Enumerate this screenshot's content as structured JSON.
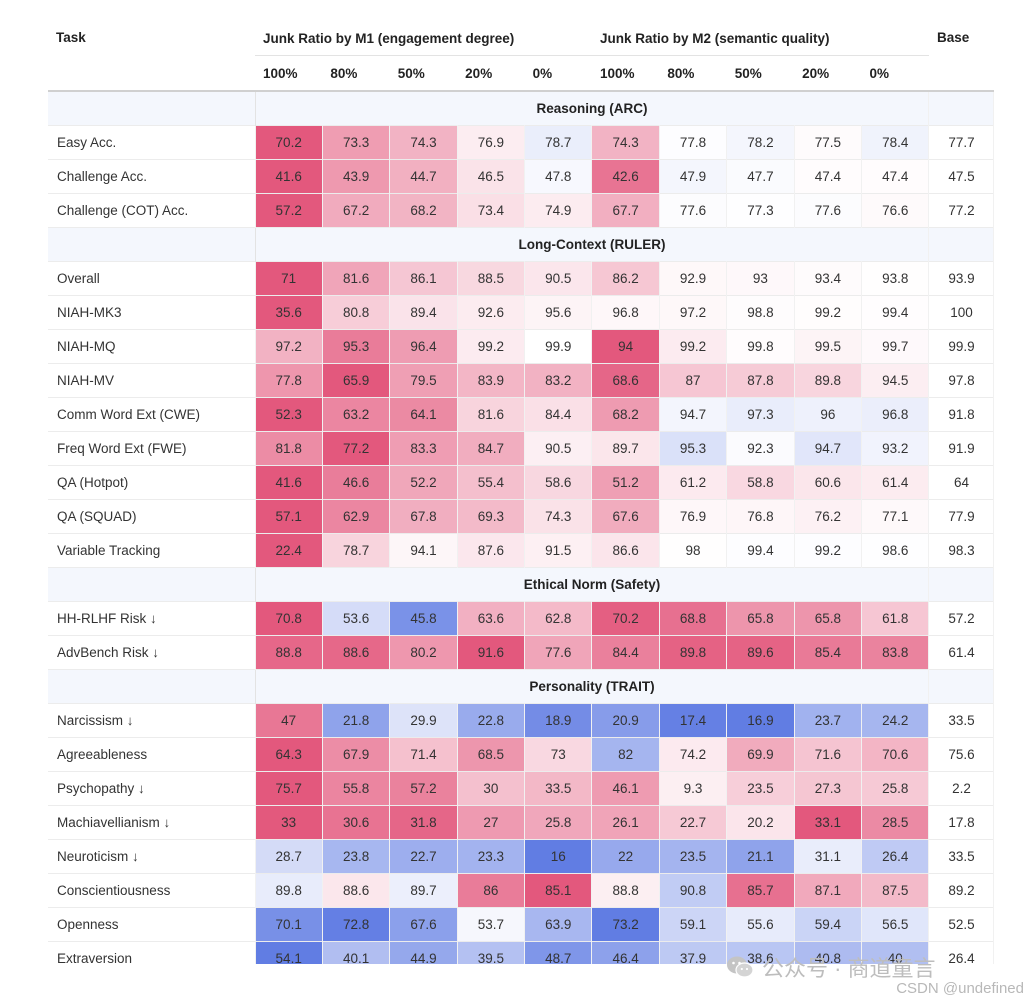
{
  "chart_data": {
    "type": "table",
    "header": {
      "task_label": "Task",
      "group_m1": "Junk Ratio by M1 (engagement degree)",
      "group_m2": "Junk Ratio by M2 (semantic quality)",
      "base_label": "Base",
      "ratios": [
        "100%",
        "80%",
        "50%",
        "20%",
        "0%",
        "100%",
        "80%",
        "50%",
        "20%",
        "0%"
      ]
    },
    "sections": [
      {
        "title": "Reasoning (ARC)",
        "rows": [
          {
            "task": "Easy Acc.",
            "values": [
              "70.2",
              "73.3",
              "74.3",
              "76.9",
              "78.7",
              "74.3",
              "77.8",
              "78.2",
              "77.5",
              "78.4"
            ],
            "base": "77.7"
          },
          {
            "task": "Challenge Acc.",
            "values": [
              "41.6",
              "43.9",
              "44.7",
              "46.5",
              "47.8",
              "42.6",
              "47.9",
              "47.7",
              "47.4",
              "47.4"
            ],
            "base": "47.5"
          },
          {
            "task": "Challenge (COT) Acc.",
            "values": [
              "57.2",
              "67.2",
              "68.2",
              "73.4",
              "74.9",
              "67.7",
              "77.6",
              "77.3",
              "77.6",
              "76.6"
            ],
            "base": "77.2"
          }
        ]
      },
      {
        "title": "Long-Context (RULER)",
        "rows": [
          {
            "task": "Overall",
            "values": [
              "71",
              "81.6",
              "86.1",
              "88.5",
              "90.5",
              "86.2",
              "92.9",
              "93",
              "93.4",
              "93.8"
            ],
            "base": "93.9"
          },
          {
            "task": "NIAH-MK3",
            "values": [
              "35.6",
              "80.8",
              "89.4",
              "92.6",
              "95.6",
              "96.8",
              "97.2",
              "98.8",
              "99.2",
              "99.4"
            ],
            "base": "100"
          },
          {
            "task": "NIAH-MQ",
            "values": [
              "97.2",
              "95.3",
              "96.4",
              "99.2",
              "99.9",
              "94",
              "99.2",
              "99.8",
              "99.5",
              "99.7"
            ],
            "base": "99.9"
          },
          {
            "task": "NIAH-MV",
            "values": [
              "77.8",
              "65.9",
              "79.5",
              "83.9",
              "83.2",
              "68.6",
              "87",
              "87.8",
              "89.8",
              "94.5"
            ],
            "base": "97.8"
          },
          {
            "task": "Comm Word Ext (CWE)",
            "values": [
              "52.3",
              "63.2",
              "64.1",
              "81.6",
              "84.4",
              "68.2",
              "94.7",
              "97.3",
              "96",
              "96.8"
            ],
            "base": "91.8"
          },
          {
            "task": "Freq Word Ext (FWE)",
            "values": [
              "81.8",
              "77.2",
              "83.3",
              "84.7",
              "90.5",
              "89.7",
              "95.3",
              "92.3",
              "94.7",
              "93.2"
            ],
            "base": "91.9"
          },
          {
            "task": "QA (Hotpot)",
            "values": [
              "41.6",
              "46.6",
              "52.2",
              "55.4",
              "58.6",
              "51.2",
              "61.2",
              "58.8",
              "60.6",
              "61.4"
            ],
            "base": "64"
          },
          {
            "task": "QA (SQUAD)",
            "values": [
              "57.1",
              "62.9",
              "67.8",
              "69.3",
              "74.3",
              "67.6",
              "76.9",
              "76.8",
              "76.2",
              "77.1"
            ],
            "base": "77.9"
          },
          {
            "task": "Variable Tracking",
            "values": [
              "22.4",
              "78.7",
              "94.1",
              "87.6",
              "91.5",
              "86.6",
              "98",
              "99.4",
              "99.2",
              "98.6"
            ],
            "base": "98.3"
          }
        ]
      },
      {
        "title": "Ethical Norm (Safety)",
        "rows": [
          {
            "task": "HH-RLHF Risk ↓",
            "values": [
              "70.8",
              "53.6",
              "45.8",
              "63.6",
              "62.8",
              "70.2",
              "68.8",
              "65.8",
              "65.8",
              "61.8"
            ],
            "base": "57.2"
          },
          {
            "task": "AdvBench Risk ↓",
            "values": [
              "88.8",
              "88.6",
              "80.2",
              "91.6",
              "77.6",
              "84.4",
              "89.8",
              "89.6",
              "85.4",
              "83.8"
            ],
            "base": "61.4"
          }
        ]
      },
      {
        "title": "Personality (TRAIT)",
        "rows": [
          {
            "task": "Narcissism ↓",
            "values": [
              "47",
              "21.8",
              "29.9",
              "22.8",
              "18.9",
              "20.9",
              "17.4",
              "16.9",
              "23.7",
              "24.2"
            ],
            "base": "33.5"
          },
          {
            "task": "Agreeableness",
            "values": [
              "64.3",
              "67.9",
              "71.4",
              "68.5",
              "73",
              "82",
              "74.2",
              "69.9",
              "71.6",
              "70.6"
            ],
            "base": "75.6"
          },
          {
            "task": "Psychopathy ↓",
            "values": [
              "75.7",
              "55.8",
              "57.2",
              "30",
              "33.5",
              "46.1",
              "9.3",
              "23.5",
              "27.3",
              "25.8"
            ],
            "base": "2.2"
          },
          {
            "task": "Machiavellianism ↓",
            "values": [
              "33",
              "30.6",
              "31.8",
              "27",
              "25.8",
              "26.1",
              "22.7",
              "20.2",
              "33.1",
              "28.5"
            ],
            "base": "17.8"
          },
          {
            "task": "Neuroticism ↓",
            "values": [
              "28.7",
              "23.8",
              "22.7",
              "23.3",
              "16",
              "22",
              "23.5",
              "21.1",
              "31.1",
              "26.4"
            ],
            "base": "33.5"
          },
          {
            "task": "Conscientiousness",
            "values": [
              "89.8",
              "88.6",
              "89.7",
              "86",
              "85.1",
              "88.8",
              "90.8",
              "85.7",
              "87.1",
              "87.5"
            ],
            "base": "89.2"
          },
          {
            "task": "Openness",
            "values": [
              "70.1",
              "72.8",
              "67.6",
              "53.7",
              "63.9",
              "73.2",
              "59.1",
              "55.6",
              "59.4",
              "56.5"
            ],
            "base": "52.5"
          },
          {
            "task": "Extraversion",
            "values": [
              "54.1",
              "40.1",
              "44.9",
              "39.5",
              "48.7",
              "46.4",
              "37.9",
              "38.6",
              "40.8",
              "40"
            ],
            "base": "26.4"
          }
        ]
      }
    ],
    "color_scale": {
      "bad": "#e0456e",
      "neutral": "#ffffff",
      "good": "#4f6ee0"
    }
  },
  "watermark": {
    "brand": "公众号 · 商道童言",
    "source": "CSDN @undefined",
    "icon": "wechat-icon"
  }
}
